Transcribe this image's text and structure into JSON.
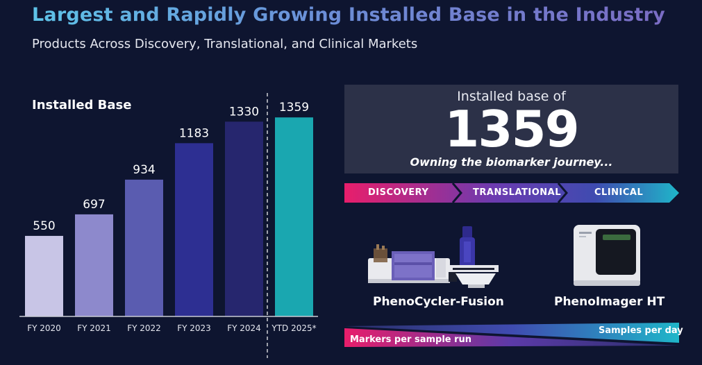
{
  "page": {
    "title": "Largest and Rapidly Growing Installed Base in the Industry",
    "subtitle": "Products Across Discovery, Translational, and Clinical Markets"
  },
  "chart_data": {
    "type": "bar",
    "title": "Installed Base",
    "categories": [
      "FY 2020",
      "FY 2021",
      "FY 2022",
      "FY 2023",
      "FY 2024",
      "YTD 2025*"
    ],
    "values": [
      550,
      697,
      934,
      1183,
      1330,
      1359
    ],
    "value_labels": [
      "550",
      "697",
      "934",
      "1183",
      "1330",
      "1359"
    ],
    "colors": [
      "#c8c5e6",
      "#8d89cc",
      "#5a5cb0",
      "#2d2f92",
      "#26266e",
      "#1aa7b0"
    ],
    "ylim": [
      0,
      1450
    ],
    "divider_before": "YTD 2025*"
  },
  "info": {
    "label": "Installed base of",
    "number": "1359",
    "tagline": "Owning the biomarker journey..."
  },
  "journey": {
    "stages": [
      "DISCOVERY",
      "TRANSLATIONAL",
      "CLINICAL"
    ],
    "colors": [
      "#e81e6b",
      "#5b3aa8",
      "#1fb6c9"
    ]
  },
  "products": [
    {
      "name": "PhenoCycler-Fusion"
    },
    {
      "name": "PhenoImager HT"
    }
  ],
  "wedges": {
    "markers_label": "Markers per sample run",
    "samples_label": "Samples per day"
  }
}
